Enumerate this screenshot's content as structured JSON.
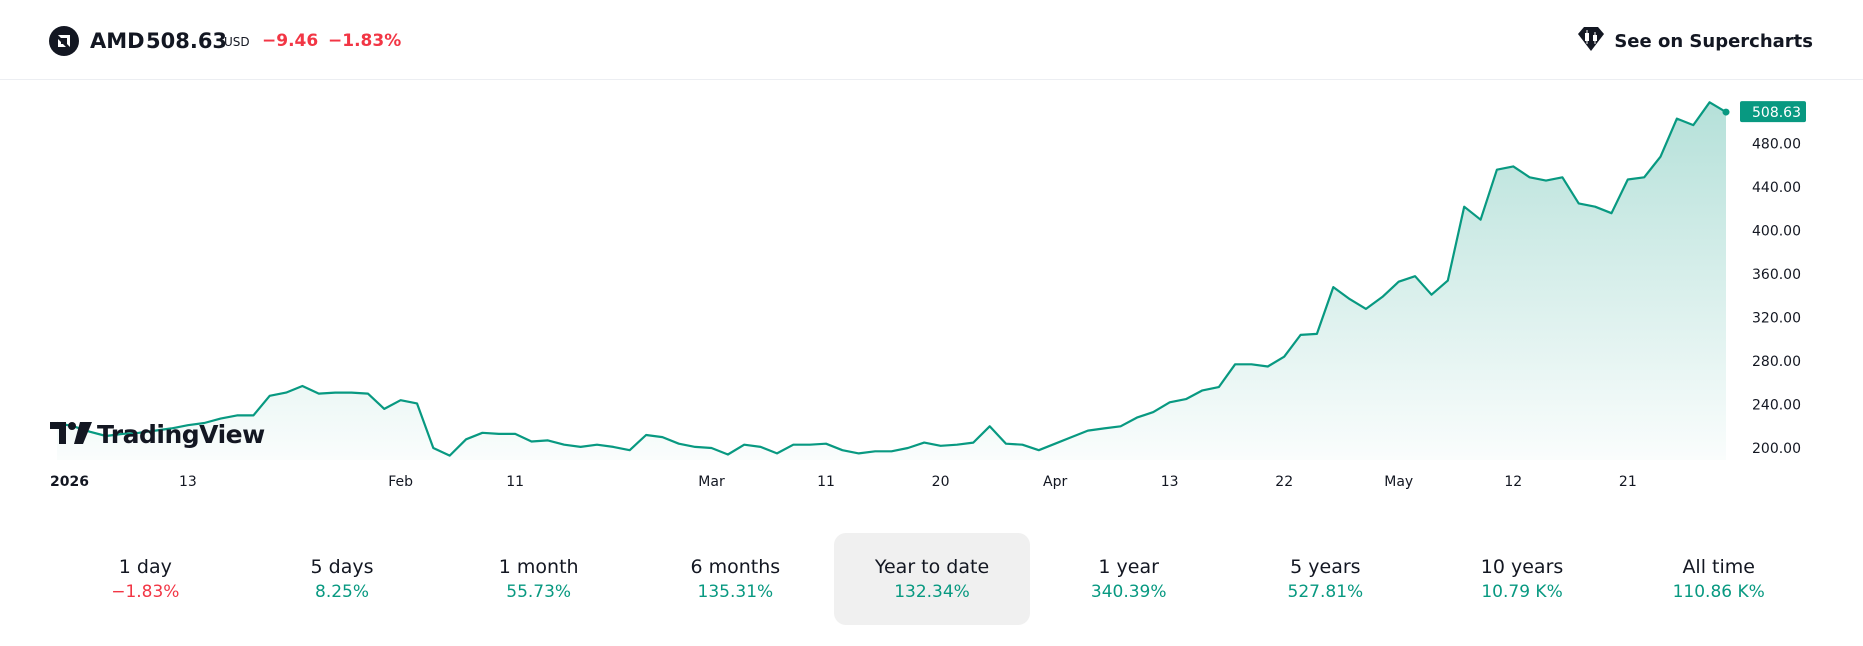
{
  "header": {
    "symbol": "AMD",
    "price": "508.63",
    "currency": "USD",
    "change": "−9.46",
    "change_pct": "−1.83%",
    "supercharts_label": "See on Supercharts"
  },
  "logo_text": "TradingView",
  "colors": {
    "line": "#089981",
    "negative": "#f23645",
    "positive": "#089981",
    "price_tag": "#089981"
  },
  "chart_data": {
    "type": "area",
    "last_price_label": "508.63",
    "y_ticks": [
      "480.00",
      "440.00",
      "400.00",
      "360.00",
      "320.00",
      "280.00",
      "240.00",
      "200.00"
    ],
    "ylim": [
      200,
      510
    ],
    "x_ticks": [
      {
        "label": "2026",
        "bold": true,
        "i": 0
      },
      {
        "label": "13",
        "i": 8
      },
      {
        "label": "Feb",
        "i": 21
      },
      {
        "label": "11",
        "i": 28
      },
      {
        "label": "Mar",
        "i": 40
      },
      {
        "label": "11",
        "i": 47
      },
      {
        "label": "20",
        "i": 54
      },
      {
        "label": "Apr",
        "i": 61
      },
      {
        "label": "13",
        "i": 68
      },
      {
        "label": "22",
        "i": 75
      },
      {
        "label": "May",
        "i": 82
      },
      {
        "label": "12",
        "i": 89
      },
      {
        "label": "21",
        "i": 96
      }
    ],
    "values": [
      223,
      220,
      215,
      211,
      213,
      214,
      216,
      218,
      221,
      223,
      227,
      230,
      230,
      248,
      251,
      257,
      250,
      251,
      251,
      250,
      236,
      244,
      241,
      200,
      193,
      208,
      214,
      213,
      213,
      206,
      207,
      203,
      201,
      203,
      201,
      198,
      212,
      210,
      204,
      201,
      200,
      194,
      203,
      201,
      195,
      203,
      203,
      204,
      198,
      195,
      197,
      197,
      200,
      205,
      202,
      203,
      205,
      220,
      204,
      203,
      198,
      204,
      210,
      216,
      218,
      220,
      228,
      233,
      242,
      245,
      253,
      256,
      277,
      277,
      275,
      284,
      304,
      305,
      348,
      337,
      328,
      339,
      353,
      358,
      341,
      354,
      422,
      410,
      456,
      459,
      449,
      446,
      449,
      425,
      422,
      416,
      447,
      449,
      468,
      503,
      497,
      518,
      509
    ]
  },
  "periods": [
    {
      "label": "1 day",
      "value": "−1.83%",
      "sign": "neg"
    },
    {
      "label": "5 days",
      "value": "8.25%",
      "sign": "pos"
    },
    {
      "label": "1 month",
      "value": "55.73%",
      "sign": "pos"
    },
    {
      "label": "6 months",
      "value": "135.31%",
      "sign": "pos"
    },
    {
      "label": "Year to date",
      "value": "132.34%",
      "sign": "pos",
      "active": true
    },
    {
      "label": "1 year",
      "value": "340.39%",
      "sign": "pos"
    },
    {
      "label": "5 years",
      "value": "527.81%",
      "sign": "pos"
    },
    {
      "label": "10 years",
      "value": "10.79 K%",
      "sign": "pos"
    },
    {
      "label": "All time",
      "value": "110.86 K%",
      "sign": "pos"
    }
  ]
}
